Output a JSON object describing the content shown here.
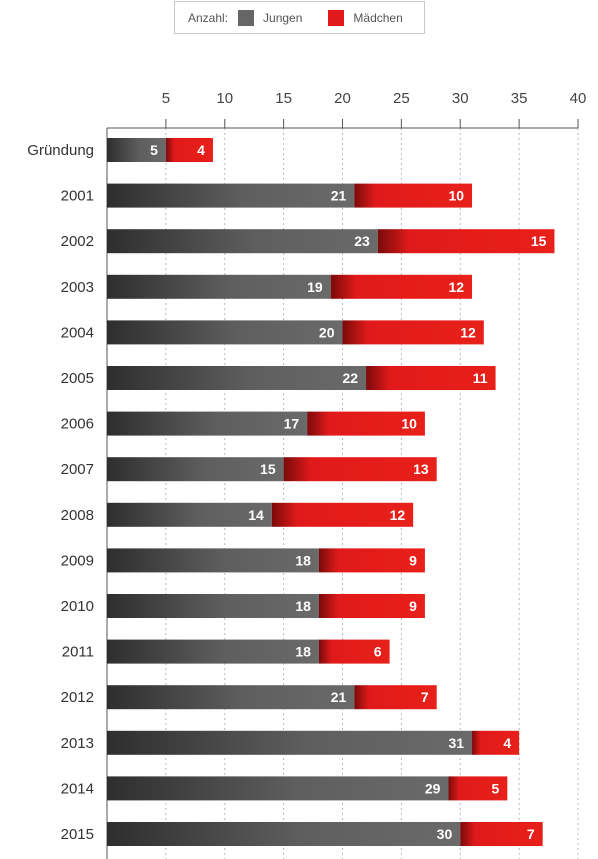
{
  "legend": {
    "lead": "Anzahl:",
    "series_colors": [
      "#666666",
      "#e01a1a"
    ]
  },
  "chart_data": {
    "type": "bar",
    "orientation": "horizontal",
    "stacked": true,
    "categories": [
      "Gründung",
      "2001",
      "2002",
      "2003",
      "2004",
      "2005",
      "2006",
      "2007",
      "2008",
      "2009",
      "2010",
      "2011",
      "2012",
      "2013",
      "2014",
      "2015"
    ],
    "series": [
      {
        "name": "Jungen",
        "color": "#666666",
        "values": [
          5,
          21,
          23,
          19,
          20,
          22,
          17,
          15,
          14,
          18,
          18,
          18,
          21,
          31,
          29,
          30
        ]
      },
      {
        "name": "Mädchen",
        "color": "#e01a1a",
        "values": [
          4,
          10,
          15,
          12,
          12,
          11,
          10,
          13,
          12,
          9,
          9,
          6,
          7,
          4,
          5,
          7
        ]
      }
    ],
    "xlim": [
      0,
      40
    ],
    "xticks": [
      5,
      10,
      15,
      20,
      25,
      30,
      35,
      40
    ],
    "axis_position": "top",
    "grid": true,
    "legend_position": "top-center",
    "title": "",
    "xlabel": "",
    "ylabel": ""
  }
}
